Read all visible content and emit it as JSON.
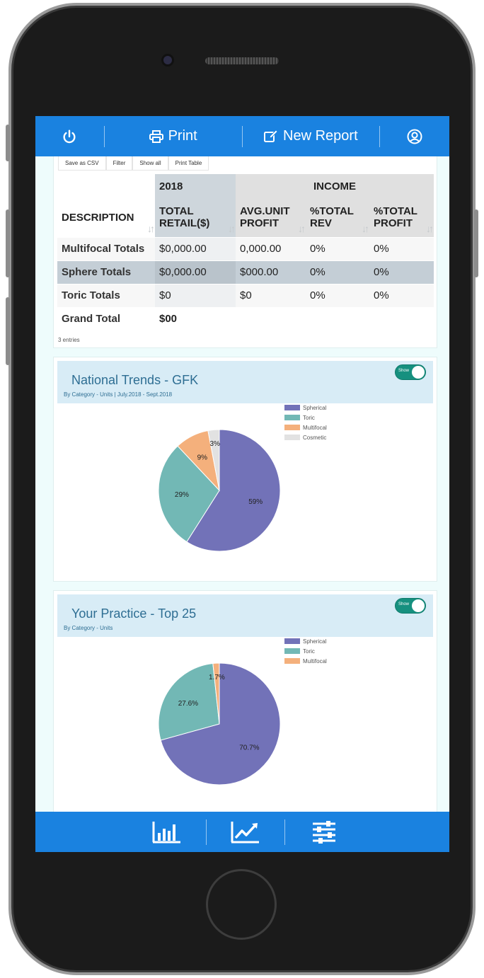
{
  "header": {
    "power_icon": "power-icon",
    "print_label": "Print",
    "new_report_label": "New Report",
    "user_icon": "user-circle-icon"
  },
  "table_tools": [
    "Save as CSV",
    "Filter",
    "Show all",
    "Print Table"
  ],
  "table": {
    "group_headers": {
      "year": "2018",
      "income": "INCOME"
    },
    "columns": [
      "DESCRIPTION",
      "TOTAL RETAIL($)",
      "AVG.UNIT PROFIT",
      "%TOTAL REV",
      "%TOTAL PROFIT"
    ],
    "rows": [
      [
        "Multifocal Totals",
        "$0,000.00",
        "0,000.00",
        "0%",
        "0%"
      ],
      [
        "Sphere Totals",
        "$0,000.00",
        "$000.00",
        "0%",
        "0%"
      ],
      [
        "Toric Totals",
        "$0",
        "$0",
        "0%",
        "0%"
      ]
    ],
    "grand_total": {
      "label": "Grand Total",
      "value": "$00"
    },
    "entries": "3 entries"
  },
  "cards": [
    {
      "title": "National Trends - GFK",
      "subtitle": "By Category - Units | July.2018 - Sept.2018",
      "toggle_label": "Show"
    },
    {
      "title": "Your Practice - Top 25",
      "subtitle": "By Category - Units",
      "toggle_label": "Show"
    }
  ],
  "chart_data": [
    {
      "type": "pie",
      "categories": [
        "Spherical",
        "Toric",
        "Multifocal",
        "Cosmetic"
      ],
      "values": [
        59,
        29,
        9,
        3
      ],
      "labels": [
        "59%",
        "29%",
        "9%",
        "3%"
      ],
      "colors": [
        "#7272b8",
        "#72b8b5",
        "#f4b07c",
        "#e2e2e2"
      ],
      "legend": "top-right"
    },
    {
      "type": "pie",
      "categories": [
        "Spherical",
        "Toric",
        "Multifocal"
      ],
      "values": [
        70.7,
        27.6,
        1.7
      ],
      "labels": [
        "70.7%",
        "27.6%",
        "1.7%"
      ],
      "colors": [
        "#7272b8",
        "#72b8b5",
        "#f4b07c"
      ],
      "legend": "top-right"
    }
  ],
  "bottom_nav": [
    "bar-chart-icon",
    "line-chart-icon",
    "sliders-icon"
  ],
  "colors": {
    "accent": "#1a82e0",
    "toggle": "#16907f",
    "title": "#2e6e93"
  }
}
